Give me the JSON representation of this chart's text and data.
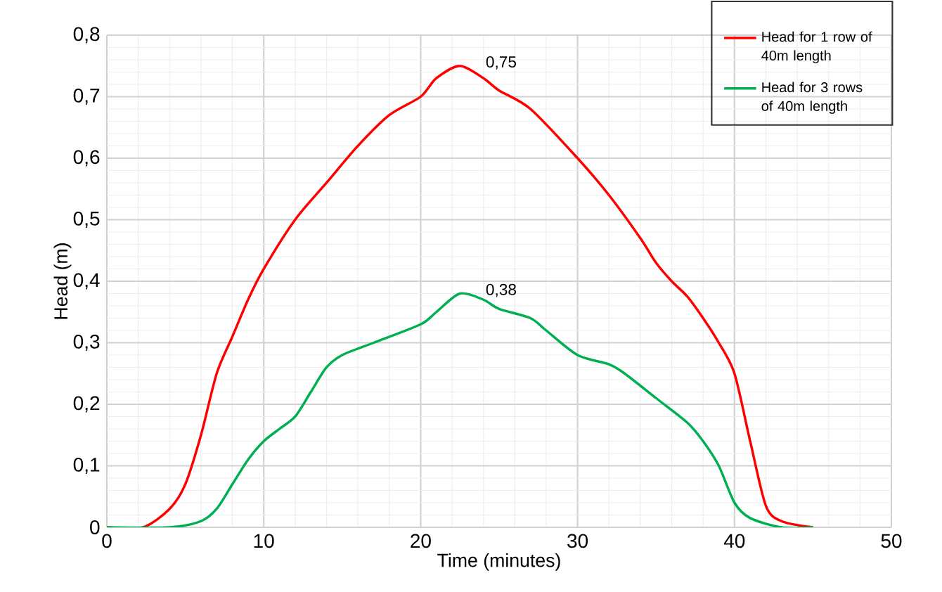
{
  "chart_data": {
    "type": "line",
    "xlabel": "Time (minutes)",
    "ylabel": "Head (m)",
    "xlim": [
      0,
      50
    ],
    "xticks": [
      0,
      10,
      20,
      30,
      40,
      50
    ],
    "ylim": [
      0,
      0.8
    ],
    "yticks": [
      {
        "value": 0,
        "label": "0"
      },
      {
        "value": 0.1,
        "label": "0,1"
      },
      {
        "value": 0.2,
        "label": "0,2"
      },
      {
        "value": 0.3,
        "label": "0,3"
      },
      {
        "value": 0.4,
        "label": "0,4"
      },
      {
        "value": 0.5,
        "label": "0,5"
      },
      {
        "value": 0.6,
        "label": "0,6"
      },
      {
        "value": 0.7,
        "label": "0,7"
      },
      {
        "value": 0.8,
        "label": "0,8"
      }
    ],
    "grid": true,
    "legend": "top right",
    "marker": "none",
    "line_style": "solid",
    "series": [
      {
        "name": "Head for 1 row of 40m length",
        "color": "#ff0000",
        "x": [
          0,
          2.3,
          4,
          5,
          6,
          7,
          8,
          9,
          10,
          12,
          14,
          16,
          18,
          20,
          21,
          22.5,
          24,
          25,
          27,
          30,
          32,
          34,
          35,
          36,
          37,
          38,
          39,
          40,
          41,
          42,
          43,
          45
        ],
        "values": [
          0,
          0,
          0.03,
          0.07,
          0.15,
          0.25,
          0.31,
          0.37,
          0.42,
          0.5,
          0.56,
          0.62,
          0.67,
          0.7,
          0.73,
          0.75,
          0.73,
          0.71,
          0.68,
          0.6,
          0.54,
          0.47,
          0.43,
          0.4,
          0.375,
          0.34,
          0.3,
          0.25,
          0.14,
          0.035,
          0.01,
          0
        ]
      },
      {
        "name": "Head for 3 rows of 40m length",
        "color": "#00b050",
        "x": [
          0,
          4,
          6,
          7,
          8,
          9,
          10,
          11,
          12,
          13,
          14,
          15,
          17,
          20,
          21,
          22.5,
          24,
          25,
          27,
          28,
          30,
          32,
          33,
          35,
          37,
          38,
          39,
          40,
          41,
          43,
          45
        ],
        "values": [
          0,
          0,
          0.01,
          0.03,
          0.07,
          0.11,
          0.14,
          0.16,
          0.18,
          0.22,
          0.26,
          0.28,
          0.3,
          0.33,
          0.35,
          0.38,
          0.37,
          0.355,
          0.34,
          0.32,
          0.28,
          0.265,
          0.25,
          0.21,
          0.17,
          0.14,
          0.1,
          0.04,
          0.015,
          0,
          0
        ]
      }
    ],
    "annotations": [
      {
        "text": "0,75",
        "x": 22.5,
        "y": 0.75
      },
      {
        "text": "0,38",
        "x": 22.5,
        "y": 0.38
      }
    ]
  }
}
